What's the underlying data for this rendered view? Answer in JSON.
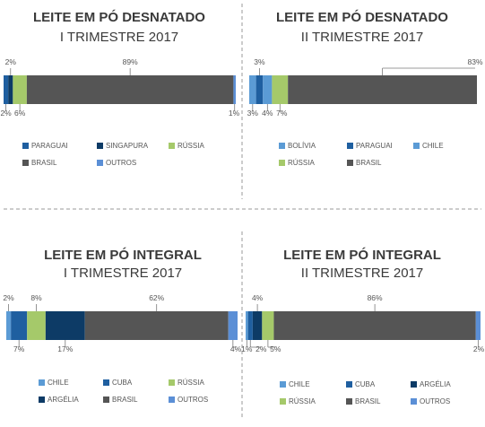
{
  "colors": {
    "CHILE": "#5b9bd5",
    "CUBA": "#1f5fa0",
    "PARAGUAI": "#1f5fa0",
    "SINGAPURA": "#0d3b66",
    "ARGÉLIA": "#0d3b66",
    "RÚSSIA": "#a5c96a",
    "BRASIL": "#555555",
    "OUTROS": "#5b8fd6",
    "BOLÍVIA": "#5b9bd5"
  },
  "chart_data": [
    {
      "type": "bar",
      "orientation": "stacked-horizontal-100",
      "title": "LEITE EM PÓ DESNATADO",
      "subtitle": "I TRIMESTRE 2017",
      "categories": [
        "PARAGUAI",
        "SINGAPURA",
        "RÚSSIA",
        "BRASIL",
        "OUTROS"
      ],
      "values": [
        2,
        2,
        6,
        89,
        1
      ],
      "labels": [
        "2%",
        "2%",
        "6%",
        "89%",
        "1%"
      ],
      "label_side": [
        "below",
        "above",
        "below",
        "above",
        "below"
      ],
      "legend": [
        [
          "PARAGUAI",
          "SINGAPURA",
          "RÚSSIA"
        ],
        [
          "BRASIL",
          "OUTROS"
        ]
      ]
    },
    {
      "type": "bar",
      "orientation": "stacked-horizontal-100",
      "title": "LEITE EM PÓ DESNATADO",
      "subtitle": "II TRIMESTRE 2017",
      "categories": [
        "BOLÍVIA",
        "PARAGUAI",
        "CHILE",
        "RÚSSIA",
        "BRASIL"
      ],
      "values": [
        3,
        3,
        4,
        7,
        83
      ],
      "labels": [
        "3%",
        "3%",
        "4%",
        "7%",
        "83%"
      ],
      "label_side": [
        "below",
        "above",
        "below",
        "below",
        "above"
      ],
      "legend": [
        [
          "BOLÍVIA",
          "PARAGUAI",
          "CHILE"
        ],
        [
          "RÚSSIA",
          "BRASIL"
        ]
      ]
    },
    {
      "type": "bar",
      "orientation": "stacked-horizontal-100",
      "title": "LEITE EM PÓ INTEGRAL",
      "subtitle": "I TRIMESTRE 2017",
      "categories": [
        "CHILE",
        "CUBA",
        "RÚSSIA",
        "ARGÉLIA",
        "BRASIL",
        "OUTROS"
      ],
      "values": [
        2,
        7,
        8,
        17,
        62,
        4
      ],
      "labels": [
        "2%",
        "7%",
        "8%",
        "17%",
        "62%",
        "4%"
      ],
      "label_side": [
        "above",
        "below",
        "above",
        "below",
        "above",
        "below"
      ],
      "legend": [
        [
          "CHILE",
          "CUBA",
          "RÚSSIA"
        ],
        [
          "ARGÉLIA",
          "BRASIL",
          "OUTROS"
        ]
      ]
    },
    {
      "type": "bar",
      "orientation": "stacked-horizontal-100",
      "title": "LEITE EM PÓ INTEGRAL",
      "subtitle": "II TRIMESTRE 2017",
      "categories": [
        "CHILE",
        "CUBA",
        "ARGÉLIA",
        "RÚSSIA",
        "BRASIL",
        "OUTROS"
      ],
      "values": [
        1,
        2,
        4,
        5,
        86,
        2
      ],
      "labels": [
        "1%",
        "2%",
        "4%",
        "5%",
        "86%",
        "2%"
      ],
      "label_side": [
        "below",
        "below",
        "above",
        "below",
        "above",
        "below"
      ],
      "legend": [
        [
          "CHILE",
          "CUBA",
          "ARGÉLIA"
        ],
        [
          "RÚSSIA",
          "BRASIL",
          "OUTROS"
        ]
      ]
    }
  ]
}
